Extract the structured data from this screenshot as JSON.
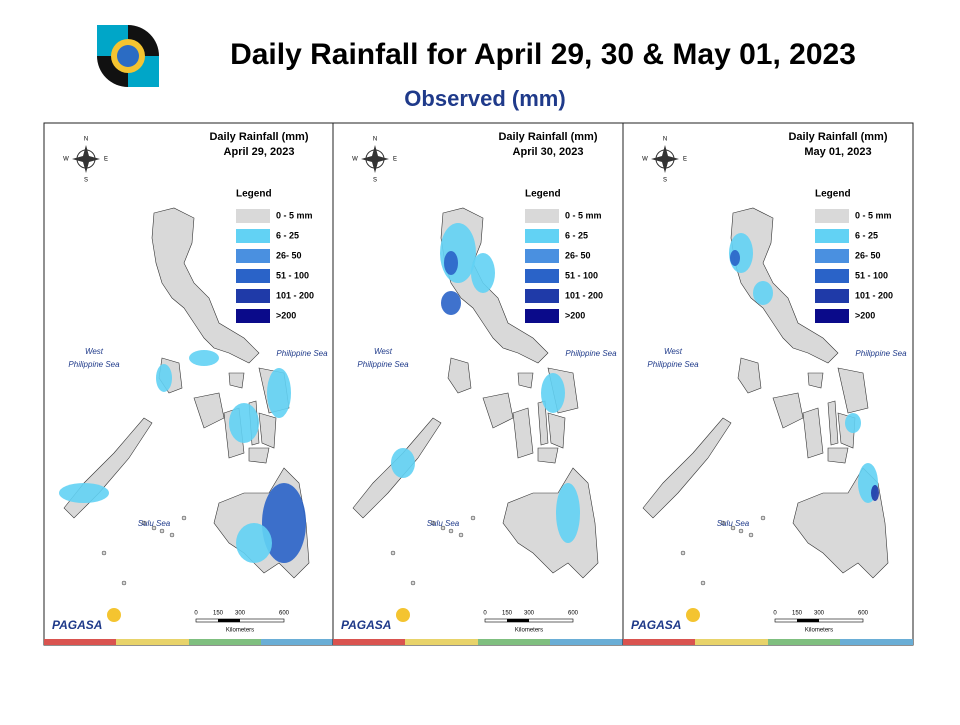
{
  "header": {
    "title": "Daily Rainfall for April 29, 30 & May 01, 2023",
    "subtitle": "Observed (mm)"
  },
  "legend": {
    "title": "Legend",
    "items": [
      {
        "label": "0 - 5 mm",
        "color": "#d9d9d9"
      },
      {
        "label": "6 - 25",
        "color": "#62d2f4"
      },
      {
        "label": "26- 50",
        "color": "#4a90e0"
      },
      {
        "label": "51 - 100",
        "color": "#2a63c8"
      },
      {
        "label": "101 - 200",
        "color": "#1f3aa8"
      },
      {
        "label": ">200",
        "color": "#0a0a8a"
      }
    ]
  },
  "panels": [
    {
      "title": "Daily Rainfall (mm)",
      "date": "April 29, 2023"
    },
    {
      "title": "Daily Rainfall (mm)",
      "date": "April 30, 2023"
    },
    {
      "title": "Daily Rainfall (mm)",
      "date": "May 01, 2023"
    }
  ],
  "map_labels": {
    "west_sea": [
      "West",
      "Philippine Sea"
    ],
    "east_sea": "Philippine Sea",
    "south_sea": "Sulu Sea"
  },
  "compass": {
    "north": "N",
    "south": "S",
    "east": "E",
    "west": "W"
  },
  "scale": {
    "ticks": [
      "0",
      "150",
      "300",
      "600"
    ],
    "unit": "Kilometers"
  },
  "logo": {
    "agency": "PAGASA"
  }
}
